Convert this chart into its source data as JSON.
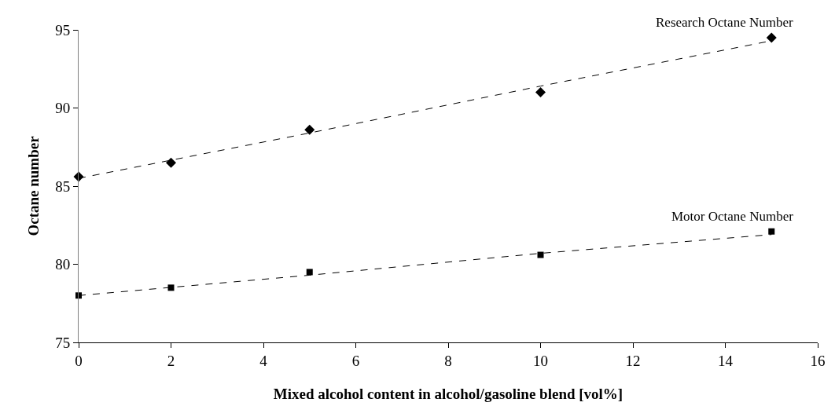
{
  "chart_data": {
    "type": "scatter",
    "xlabel": "Mixed alcohol content in alcohol/gasoline blend [vol%]",
    "ylabel": "Octane number",
    "xlim": [
      0,
      16
    ],
    "xticks": [
      0,
      2,
      4,
      6,
      8,
      10,
      12,
      14,
      16
    ],
    "ylim": [
      75,
      95
    ],
    "yticks": [
      75,
      80,
      85,
      90,
      95
    ],
    "legend": false,
    "series": [
      {
        "name": "Research Octane Number",
        "color": "#000000",
        "marker": "diamond",
        "x": [
          0,
          2,
          5,
          10,
          15
        ],
        "values": [
          85.6,
          86.5,
          88.6,
          91.0,
          94.5
        ]
      },
      {
        "name": "Motor Octane Number",
        "color": "#000000",
        "marker": "square",
        "x": [
          0,
          2,
          5,
          10,
          15
        ],
        "values": [
          78.0,
          78.5,
          79.5,
          80.6,
          82.1
        ]
      },
      {
        "type": "line",
        "color": "#000000",
        "line_style": "dashed",
        "marker": "none",
        "x": [
          0,
          5,
          10,
          15
        ],
        "values": [
          85.5,
          88.4,
          91.4,
          94.3
        ]
      },
      {
        "type": "line",
        "color": "#000000",
        "line_style": "dashed",
        "marker": "none",
        "x": [
          0,
          5,
          10,
          15
        ],
        "values": [
          78.0,
          79.3,
          80.7,
          81.9
        ]
      }
    ]
  }
}
